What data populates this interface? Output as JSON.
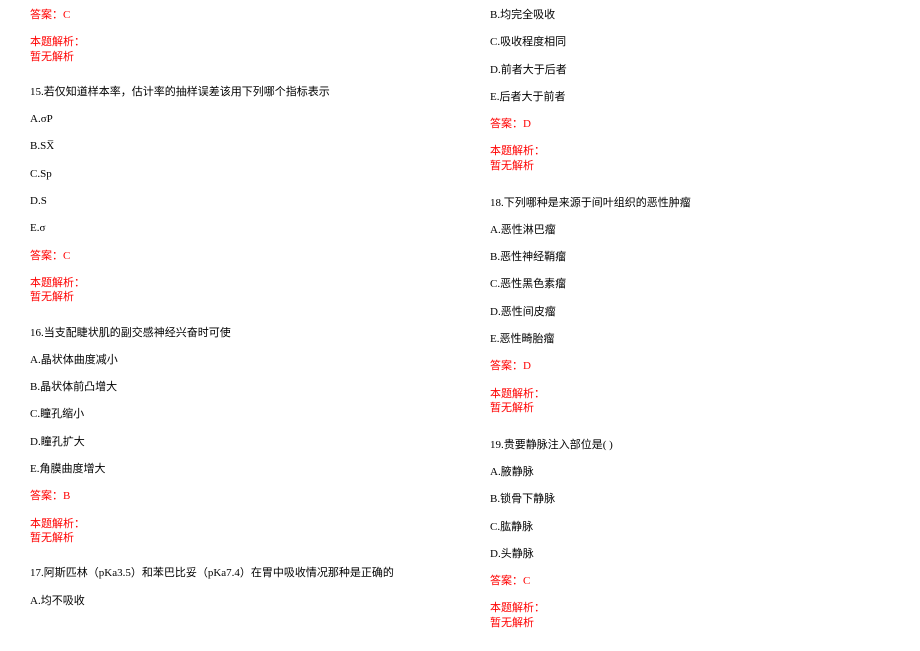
{
  "colors": {
    "text": "#000000",
    "accent": "#ff0000",
    "background": "#ffffff"
  },
  "typography": {
    "fontsize": 11,
    "family": "SimSun"
  },
  "left": {
    "ans14": "答案：C",
    "anlabel14": "本题解析：",
    "annone14": "暂无解析",
    "q15": "15.若仅知道样本率，估计率的抽样误差该用下列哪个指标表示",
    "q15a": "A.σP",
    "q15b": "B.SX̅",
    "q15c": "C.Sp",
    "q15d": "D.S",
    "q15e": "E.σ",
    "ans15": "答案：C",
    "anlabel15": "本题解析：",
    "annone15": "暂无解析",
    "q16": "16.当支配睫状肌的副交感神经兴奋时可使",
    "q16a": "A.晶状体曲度减小",
    "q16b": "B.晶状体前凸增大",
    "q16c": "C.瞳孔缩小",
    "q16d": "D.瞳孔扩大",
    "q16e": "E.角膜曲度增大",
    "ans16": "答案：B",
    "anlabel16": "本题解析：",
    "annone16": "暂无解析",
    "q17": "17.阿斯匹林（pKa3.5）和苯巴比妥（pKa7.4）在胃中吸收情况那种是正确的",
    "q17a": "A.均不吸收"
  },
  "right": {
    "q17b": "B.均完全吸收",
    "q17c": "C.吸收程度相同",
    "q17d": "D.前者大于后者",
    "q17e": "E.后者大于前者",
    "ans17": "答案：D",
    "anlabel17": "本题解析：",
    "annone17": "暂无解析",
    "q18": "18.下列哪种是来源于间叶组织的恶性肿瘤",
    "q18a": "A.恶性淋巴瘤",
    "q18b": "B.恶性神经鞘瘤",
    "q18c": "C.恶性黑色素瘤",
    "q18d": "D.恶性间皮瘤",
    "q18e": "E.恶性畸胎瘤",
    "ans18": "答案：D",
    "anlabel18": "本题解析：",
    "annone18": "暂无解析",
    "q19": "19.贵要静脉注入部位是( )",
    "q19a": "A.腋静脉",
    "q19b": "B.锁骨下静脉",
    "q19c": "C.肱静脉",
    "q19d": "D.头静脉",
    "ans19": "答案：C",
    "anlabel19": "本题解析：",
    "annone19": "暂无解析"
  }
}
